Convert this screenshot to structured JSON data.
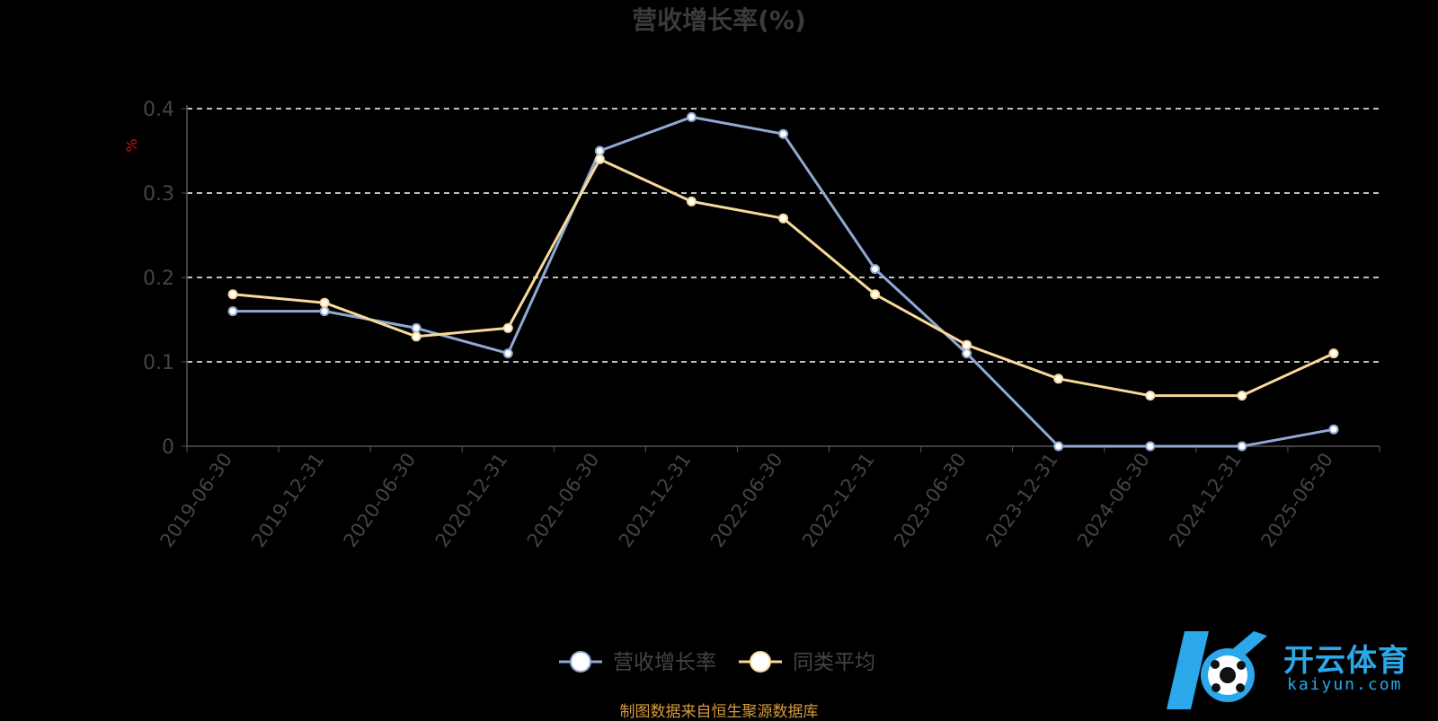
{
  "chart_data": {
    "type": "line",
    "title": "营收增长率(%)",
    "ylabel": "%",
    "ylim": [
      0,
      0.4
    ],
    "yticks": [
      0,
      0.1,
      0.2,
      0.3,
      0.4
    ],
    "grid": true,
    "legend_position": "bottom",
    "categories": [
      "2019-06-30",
      "2019-12-31",
      "2020-06-30",
      "2020-12-31",
      "2021-06-30",
      "2021-12-31",
      "2022-06-30",
      "2022-12-31",
      "2023-06-30",
      "2023-12-31",
      "2024-06-30",
      "2024-12-31",
      "2025-06-30"
    ],
    "series": [
      {
        "name": "营收增长率",
        "color": "#8fa9d4",
        "values": [
          0.16,
          0.16,
          0.14,
          0.11,
          0.35,
          0.39,
          0.37,
          0.21,
          0.11,
          0,
          0,
          0,
          0.02
        ]
      },
      {
        "name": "同类平均",
        "color": "#f7d999",
        "values": [
          0.18,
          0.17,
          0.13,
          0.14,
          0.34,
          0.29,
          0.27,
          0.18,
          0.12,
          0.08,
          0.06,
          0.06,
          0.11
        ]
      }
    ]
  },
  "source_note": "制图数据来自恒生聚源数据库",
  "watermark": {
    "text": "开云体育",
    "sub": "kaiyun.com"
  }
}
